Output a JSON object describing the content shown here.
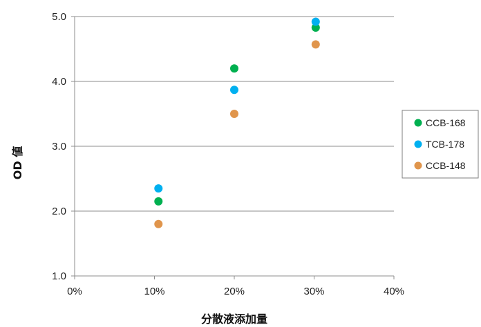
{
  "chart_data": {
    "type": "scatter",
    "xlabel": "分散液添加量",
    "ylabel": "OD 値",
    "xlim": [
      0,
      40
    ],
    "ylim": [
      1.0,
      5.0
    ],
    "x_ticks": [
      "0%",
      "10%",
      "20%",
      "30%",
      "40%"
    ],
    "y_ticks": [
      "1.0",
      "2.0",
      "3.0",
      "4.0",
      "5.0"
    ],
    "x_tick_values": [
      0,
      10,
      20,
      30,
      40
    ],
    "y_tick_values": [
      1.0,
      2.0,
      3.0,
      4.0,
      5.0
    ],
    "grid": "horizontal",
    "legend_position": "right",
    "series": [
      {
        "name": "CCB-168",
        "color": "#00b050",
        "points": [
          [
            10.5,
            2.15
          ],
          [
            20.0,
            4.2
          ],
          [
            30.2,
            4.83
          ]
        ]
      },
      {
        "name": "TCB-178",
        "color": "#00b0f0",
        "points": [
          [
            10.5,
            2.35
          ],
          [
            20.0,
            3.87
          ],
          [
            30.2,
            4.92
          ]
        ]
      },
      {
        "name": "CCB-148",
        "color": "#e0954c",
        "points": [
          [
            10.5,
            1.8
          ],
          [
            20.0,
            3.5
          ],
          [
            30.2,
            4.57
          ]
        ]
      }
    ]
  }
}
